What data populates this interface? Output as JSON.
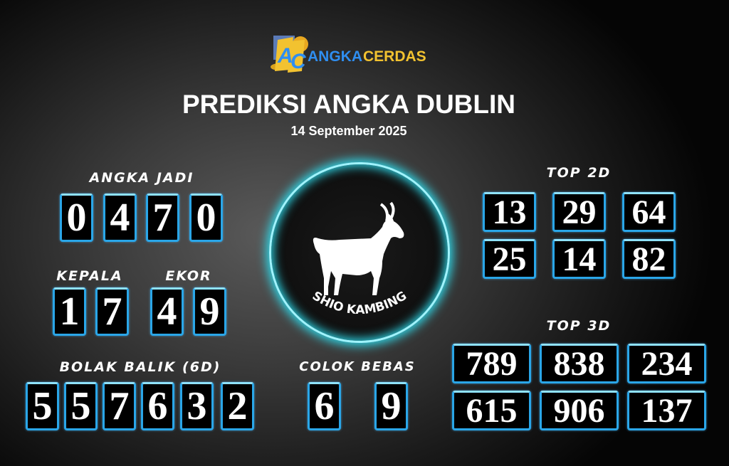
{
  "logo": {
    "text_part1": "ANGKA",
    "text_part2": "CERDAS",
    "mark": "AC"
  },
  "title": "PREDIKSI ANGKA DUBLIN",
  "date": "14 September 2025",
  "angka_jadi": {
    "label": "ANGKA JADI",
    "digits": [
      "0",
      "4",
      "7",
      "0"
    ]
  },
  "kepala": {
    "label": "KEPALA",
    "digits": [
      "1",
      "7"
    ]
  },
  "ekor": {
    "label": "EKOR",
    "digits": [
      "4",
      "9"
    ]
  },
  "bolak_balik": {
    "label": "BOLAK BALIK (6D)",
    "digits": [
      "5",
      "5",
      "7",
      "6",
      "3",
      "2"
    ]
  },
  "colok_bebas": {
    "label": "COLOK BEBAS",
    "digits": [
      "6",
      "9"
    ]
  },
  "shio": {
    "label": "SHIO KAMBING",
    "icon": "goat-icon"
  },
  "top2d": {
    "label": "TOP 2D",
    "numbers": [
      "13",
      "29",
      "64",
      "25",
      "14",
      "82"
    ]
  },
  "top3d": {
    "label": "TOP 3D",
    "numbers": [
      "789",
      "838",
      "234",
      "615",
      "906",
      "137"
    ]
  },
  "colors": {
    "box_border": "#2aa6e8",
    "glow": "#2fd6e6",
    "logo_blue": "#2f8ef0",
    "logo_yellow": "#f2c230"
  }
}
